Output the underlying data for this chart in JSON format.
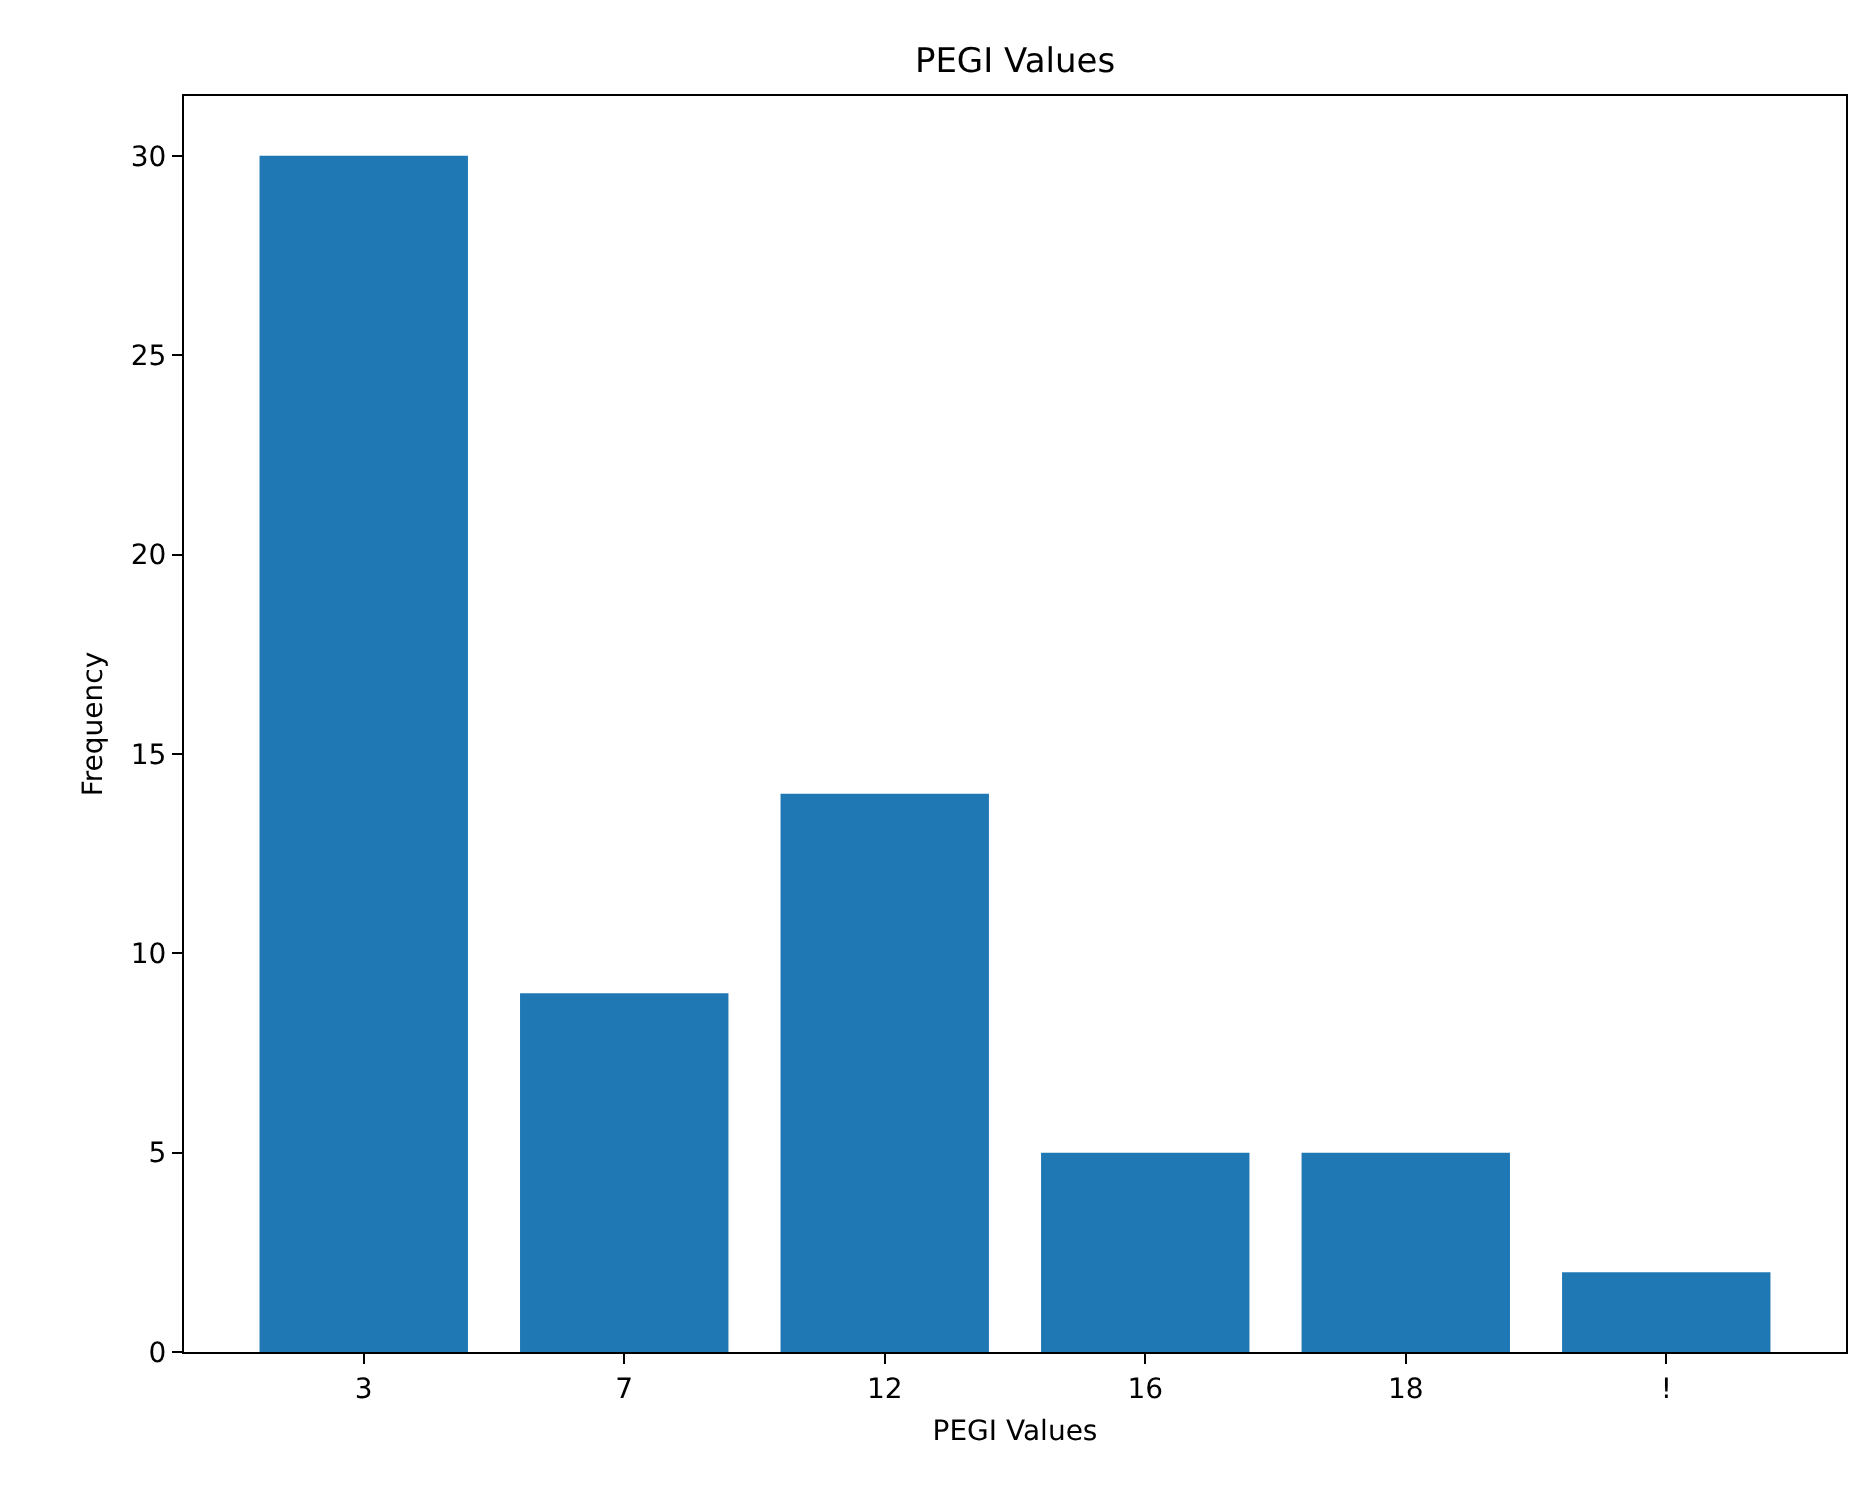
{
  "chart_data": {
    "type": "bar",
    "title": "PEGI Values",
    "xlabel": "PEGI Values",
    "ylabel": "Frequency",
    "categories": [
      "3",
      "7",
      "12",
      "16",
      "18",
      "!"
    ],
    "values": [
      30,
      9,
      14,
      5,
      5,
      2
    ],
    "color": "#1f77b4",
    "ylim": [
      0,
      31.5
    ],
    "yticks": [
      0,
      5,
      10,
      15,
      20,
      25,
      30
    ],
    "legend": false
  }
}
